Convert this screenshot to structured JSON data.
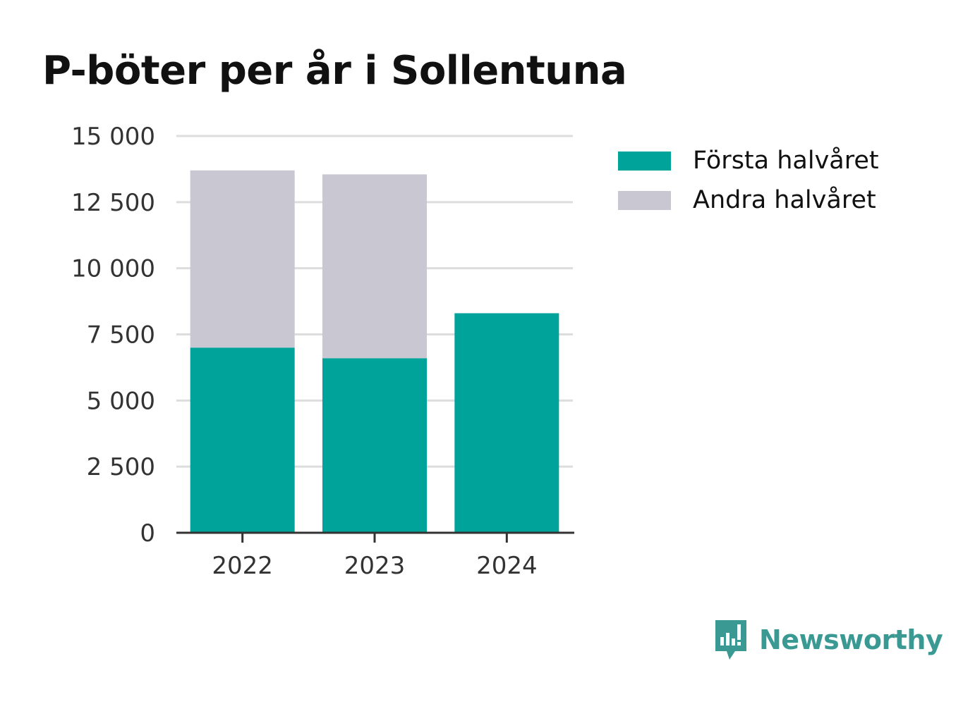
{
  "title": "P-böter per år i Sollentuna",
  "colors": {
    "first_half": "#00a39a",
    "second_half": "#c8c7d2",
    "grid": "#dddddd",
    "axis": "#333333",
    "tick_text": "#333333",
    "brand": "#3a9a93"
  },
  "legend": {
    "position": "top-right",
    "items": [
      {
        "label": "Första halvåret",
        "color": "#00a39a"
      },
      {
        "label": "Andra halvåret",
        "color": "#c8c7d2"
      }
    ]
  },
  "brand": {
    "name": "Newsworthy",
    "icon": "newsworthy-logo-icon"
  },
  "chart_data": {
    "type": "bar",
    "stacked": true,
    "title": "P-böter per år i Sollentuna",
    "xlabel": "",
    "ylabel": "",
    "categories": [
      "2022",
      "2023",
      "2024"
    ],
    "series": [
      {
        "name": "Första halvåret",
        "color": "#00a39a",
        "values": [
          7000,
          6600,
          8300
        ]
      },
      {
        "name": "Andra halvåret",
        "color": "#c8c7d2",
        "values": [
          6700,
          6950,
          0
        ]
      }
    ],
    "ylim": [
      0,
      15000
    ],
    "yticks": [
      0,
      2500,
      5000,
      7500,
      10000,
      12500,
      15000
    ],
    "ytick_labels": [
      "0",
      "2 500",
      "5 000",
      "7 500",
      "10 000",
      "12 500",
      "15 000"
    ],
    "grid": true,
    "legend_position": "top-right"
  }
}
